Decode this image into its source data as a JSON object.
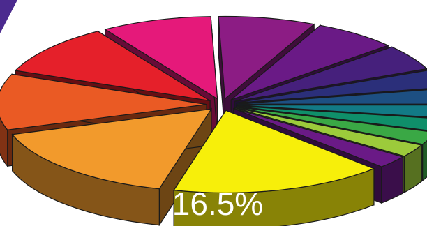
{
  "colors": {
    "accent_corner": "#4b2a8f",
    "outline": "#1a1a1a"
  },
  "chart_data": {
    "type": "pie",
    "style": "3d-exploded",
    "legend": "none",
    "slices": [
      {
        "value": 16.5,
        "label": "16.5%",
        "color": "#f7ef0a"
      },
      {
        "value": 16.0,
        "label": "",
        "color": "#f29a2c"
      },
      {
        "value": 11.0,
        "label": "",
        "color": "#ea5a24"
      },
      {
        "value": 10.0,
        "label": "",
        "color": "#e5202a"
      },
      {
        "value": 8.5,
        "label": "",
        "color": "#e5197a"
      },
      {
        "value": 7.5,
        "label": "",
        "color": "#8c1c84"
      },
      {
        "value": 6.5,
        "label": "",
        "color": "#6a1a86"
      },
      {
        "value": 5.0,
        "label": "",
        "color": "#46207c"
      },
      {
        "value": 3.5,
        "label": "",
        "color": "#2b2f7a"
      },
      {
        "value": 3.0,
        "label": "",
        "color": "#1d4f82"
      },
      {
        "value": 2.5,
        "label": "",
        "color": "#127a86"
      },
      {
        "value": 2.5,
        "label": "",
        "color": "#0f8f6a"
      },
      {
        "value": 2.5,
        "label": "",
        "color": "#3aa845"
      },
      {
        "value": 2.5,
        "label": "",
        "color": "#9ccb3b"
      },
      {
        "value": 2.5,
        "label": "",
        "color": "#6a1a86"
      }
    ]
  }
}
